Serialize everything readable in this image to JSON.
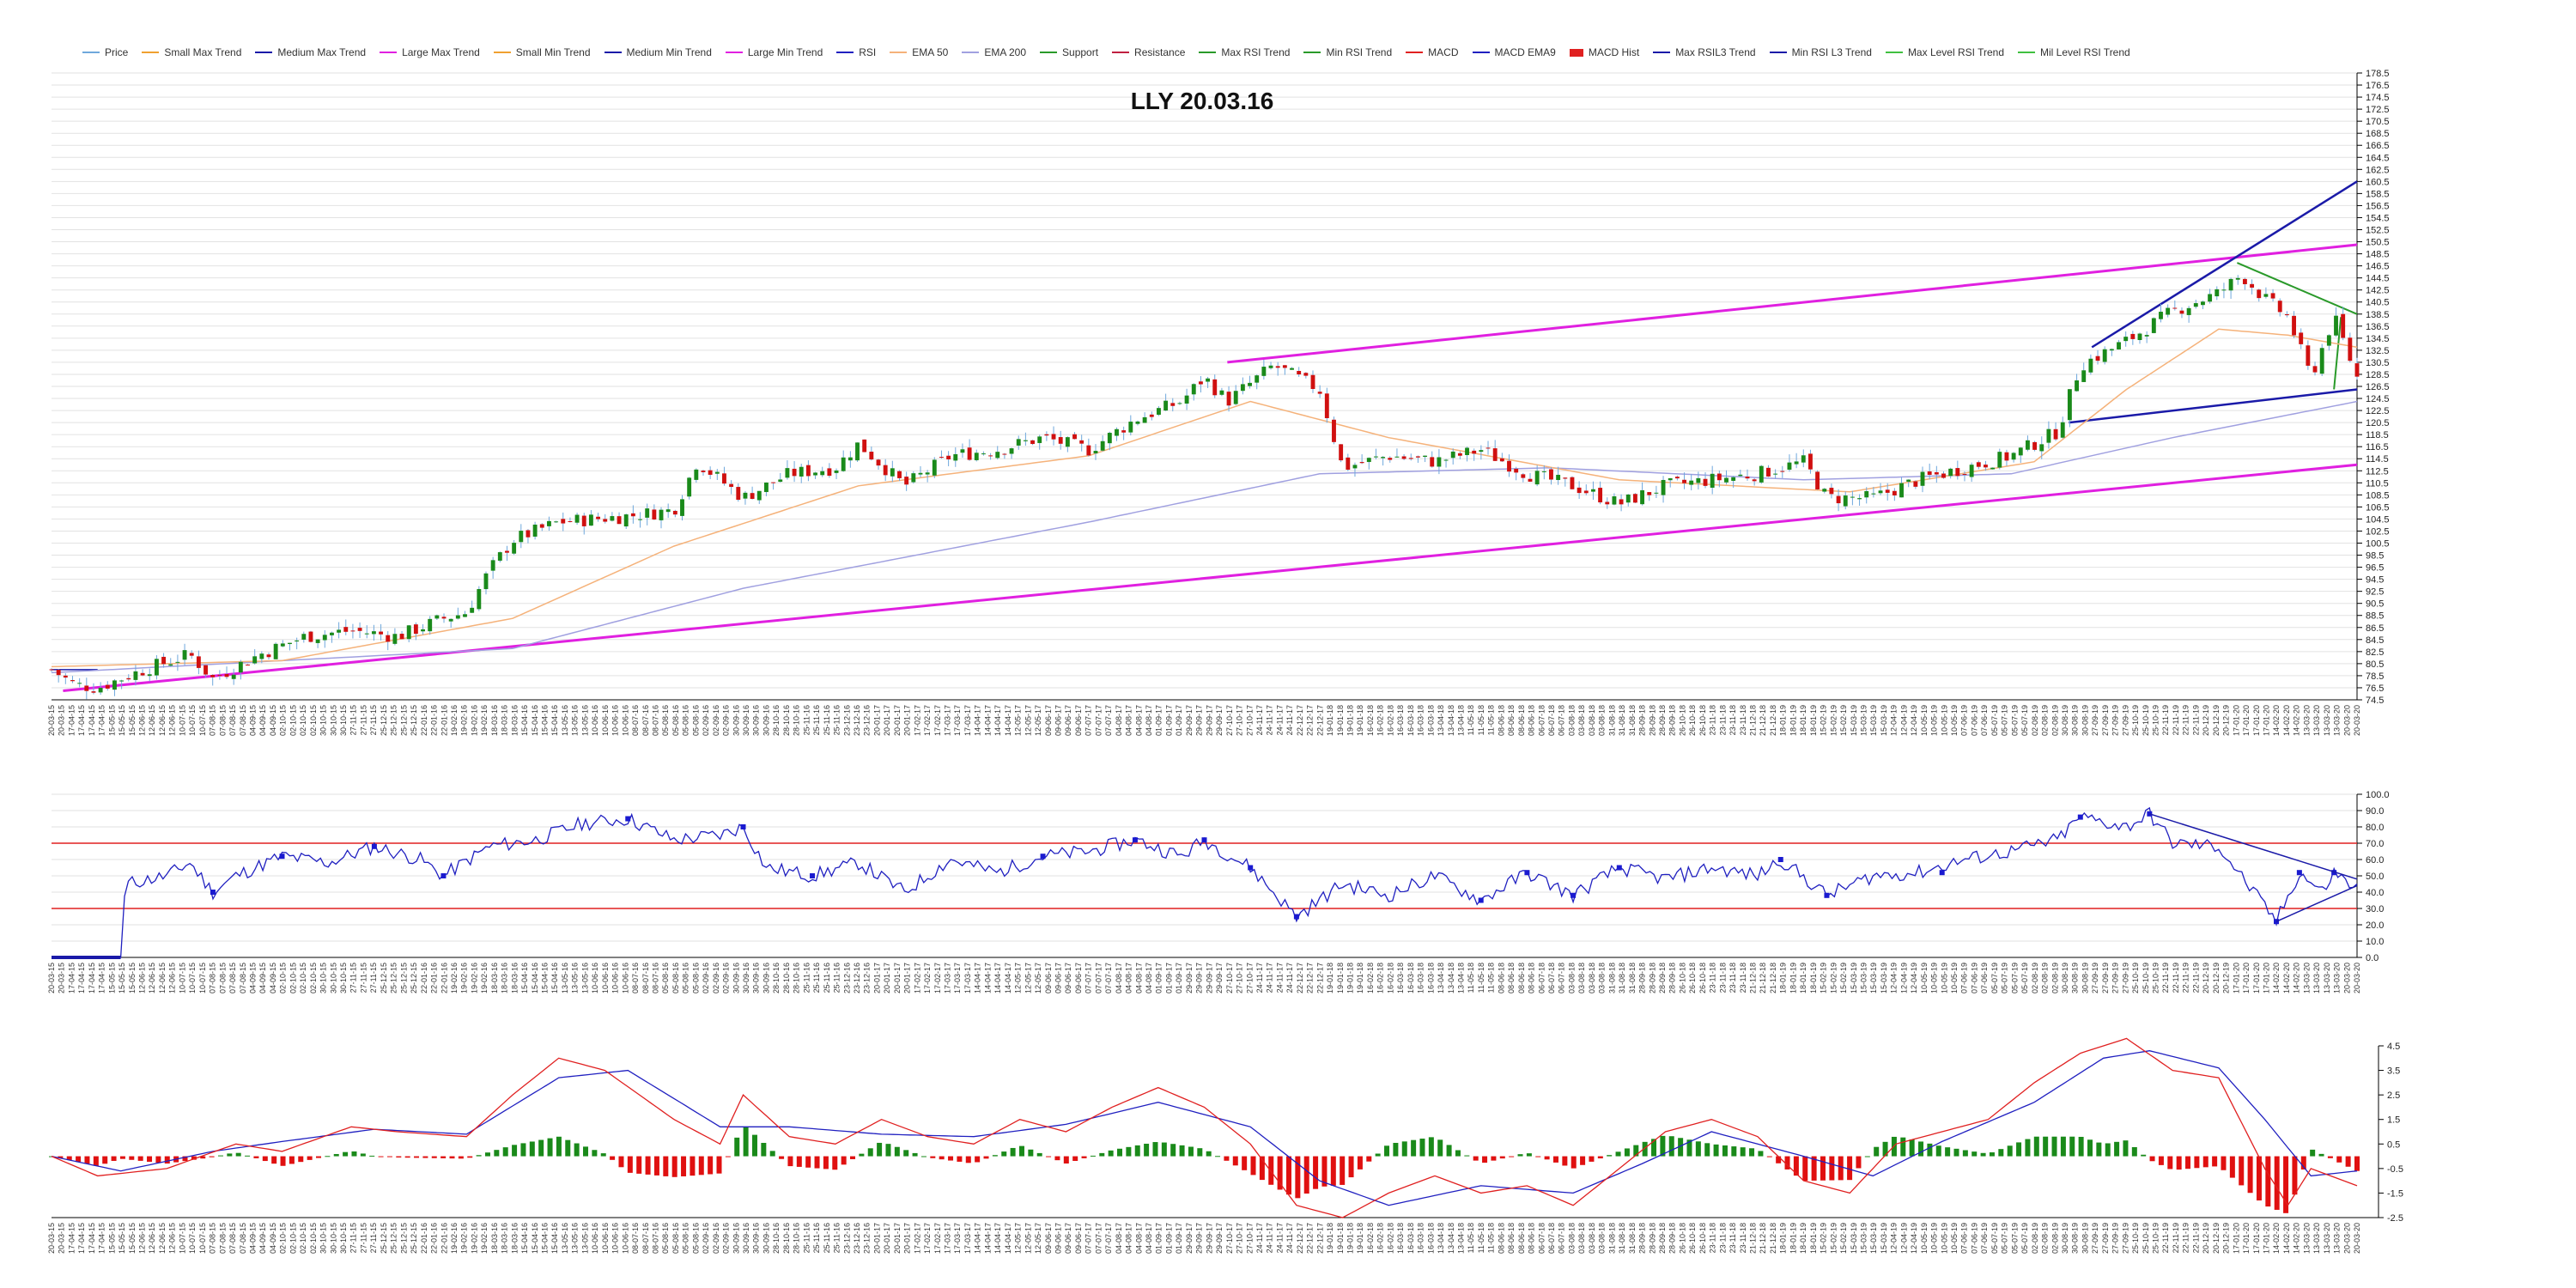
{
  "legend": [
    {
      "label": "Price",
      "color": "#6fa8dc"
    },
    {
      "label": "Small Max Trend",
      "color": "#f0a030"
    },
    {
      "label": "Medium Max Trend",
      "color": "#1a1aa8"
    },
    {
      "label": "Large Max Trend",
      "color": "#e020e0"
    },
    {
      "label": "Small Min Trend",
      "color": "#f0a030"
    },
    {
      "label": "Medium Min Trend",
      "color": "#1a1aa8"
    },
    {
      "label": "Large Min Trend",
      "color": "#e020e0"
    },
    {
      "label": "RSI",
      "color": "#2020c0"
    },
    {
      "label": "EMA 50",
      "color": "#f5b27a"
    },
    {
      "label": "EMA 200",
      "color": "#a0a0e0"
    },
    {
      "label": "Support",
      "color": "#2a9a2a"
    },
    {
      "label": "Resistance",
      "color": "#c02040"
    },
    {
      "label": "Max RSI Trend",
      "color": "#2a9a2a"
    },
    {
      "label": "Min RSI Trend",
      "color": "#2a9a2a"
    },
    {
      "label": "MACD",
      "color": "#e02020"
    },
    {
      "label": "MACD EMA9",
      "color": "#2020c0"
    },
    {
      "label": "MACD Hist",
      "color": "#e02020",
      "box": true
    },
    {
      "label": "Max RSIL3 Trend",
      "color": "#1a1aa8"
    },
    {
      "label": "Min RSI L3 Trend",
      "color": "#1a1aa8"
    },
    {
      "label": "Max Level RSI Trend",
      "color": "#40c040"
    },
    {
      "label": "Mil Level RSI Trend",
      "color": "#40c040"
    }
  ],
  "chart_data": {
    "type": "line",
    "title": "LLY 20.03.16",
    "x_dates": [
      "20-03-15",
      "17-04-15",
      "15-05-15",
      "12-06-15",
      "10-07-15",
      "07-08-15",
      "04-09-15",
      "02-10-15",
      "30-10-15",
      "27-11-15",
      "25-12-15",
      "22-01-16",
      "19-02-16",
      "18-03-16",
      "15-04-16",
      "13-05-16",
      "10-06-16",
      "08-07-16",
      "05-08-16",
      "02-09-16",
      "30-09-16",
      "28-10-16",
      "25-11-16",
      "23-12-16",
      "20-01-17",
      "17-02-17",
      "17-03-17",
      "14-04-17",
      "12-05-17",
      "09-06-17",
      "07-07-17",
      "04-08-17",
      "01-09-17",
      "29-09-17",
      "27-10-17",
      "24-11-17",
      "22-12-17",
      "19-01-18",
      "16-02-18",
      "16-03-18",
      "13-04-18",
      "11-05-18",
      "08-06-18",
      "06-07-18",
      "03-08-18",
      "31-08-18",
      "28-09-18",
      "26-10-18",
      "23-11-18",
      "21-12-18",
      "18-01-19",
      "15-02-19",
      "15-03-19",
      "12-04-19",
      "10-05-19",
      "07-06-19",
      "05-07-19",
      "02-08-19",
      "30-08-19",
      "27-09-19",
      "25-10-19",
      "22-11-19",
      "20-12-19",
      "17-01-20",
      "14-02-20",
      "13-03-20",
      "20-03-20"
    ],
    "price": {
      "ylim": [
        74.5,
        178.5
      ],
      "ticks": [
        74.5,
        76.5,
        78.5,
        80.5,
        82.5,
        84.5,
        86.5,
        88.5,
        90.5,
        92.5,
        94.5,
        96.5,
        98.5,
        100.5,
        102.5,
        104.5,
        106.5,
        108.5,
        110.5,
        112.5,
        114.5,
        116.5,
        118.5,
        120.5,
        122.5,
        124.5,
        126.5,
        128.5,
        130.5,
        132.5,
        134.5,
        136.5,
        138.5,
        140.5,
        142.5,
        144.5,
        146.5,
        148.5,
        150.5,
        152.5,
        154.5,
        156.5,
        158.5,
        160.5,
        162.5,
        164.5,
        166.5,
        168.5,
        170.5,
        172.5,
        174.5,
        176.5,
        178.5
      ],
      "close_anchors": [
        [
          0,
          79.5
        ],
        [
          0.01,
          77
        ],
        [
          0.02,
          76.5
        ],
        [
          0.04,
          79.5
        ],
        [
          0.06,
          82
        ],
        [
          0.07,
          78
        ],
        [
          0.09,
          82
        ],
        [
          0.11,
          85
        ],
        [
          0.13,
          86
        ],
        [
          0.15,
          85
        ],
        [
          0.17,
          88
        ],
        [
          0.18,
          89
        ],
        [
          0.19,
          96
        ],
        [
          0.2,
          101
        ],
        [
          0.22,
          104
        ],
        [
          0.25,
          105
        ],
        [
          0.27,
          106
        ],
        [
          0.28,
          114
        ],
        [
          0.3,
          108
        ],
        [
          0.32,
          112
        ],
        [
          0.34,
          113
        ],
        [
          0.35,
          117
        ],
        [
          0.37,
          110
        ],
        [
          0.39,
          115
        ],
        [
          0.41,
          116
        ],
        [
          0.43,
          118
        ],
        [
          0.45,
          116
        ],
        [
          0.47,
          121
        ],
        [
          0.49,
          124
        ],
        [
          0.5,
          128
        ],
        [
          0.51,
          124
        ],
        [
          0.53,
          130
        ],
        [
          0.55,
          126
        ],
        [
          0.56,
          113
        ],
        [
          0.58,
          115
        ],
        [
          0.6,
          114
        ],
        [
          0.62,
          116
        ],
        [
          0.64,
          112
        ],
        [
          0.66,
          110
        ],
        [
          0.68,
          107
        ],
        [
          0.7,
          110
        ],
        [
          0.72,
          111
        ],
        [
          0.74,
          112
        ],
        [
          0.75,
          113
        ],
        [
          0.76,
          114
        ],
        [
          0.77,
          108
        ],
        [
          0.79,
          108
        ],
        [
          0.81,
          111
        ],
        [
          0.83,
          113
        ],
        [
          0.85,
          115
        ],
        [
          0.87,
          119
        ],
        [
          0.88,
          130
        ],
        [
          0.9,
          134
        ],
        [
          0.92,
          139
        ],
        [
          0.94,
          142
        ],
        [
          0.95,
          145
        ],
        [
          0.96,
          141
        ],
        [
          0.97,
          138
        ],
        [
          0.98,
          128
        ],
        [
          0.99,
          138
        ],
        [
          1,
          128
        ]
      ],
      "ema50_anchors": [
        [
          0,
          80
        ],
        [
          0.1,
          81
        ],
        [
          0.2,
          88
        ],
        [
          0.27,
          100
        ],
        [
          0.35,
          110
        ],
        [
          0.45,
          115
        ],
        [
          0.52,
          124
        ],
        [
          0.58,
          118
        ],
        [
          0.68,
          111
        ],
        [
          0.78,
          109
        ],
        [
          0.86,
          114
        ],
        [
          0.9,
          126
        ],
        [
          0.94,
          136
        ],
        [
          0.97,
          135
        ],
        [
          1,
          133
        ]
      ],
      "ema200_anchors": [
        [
          0,
          79
        ],
        [
          0.2,
          83
        ],
        [
          0.3,
          93
        ],
        [
          0.45,
          104
        ],
        [
          0.55,
          112
        ],
        [
          0.65,
          113
        ],
        [
          0.76,
          111
        ],
        [
          0.85,
          112
        ],
        [
          0.92,
          118
        ],
        [
          1,
          124
        ]
      ]
    },
    "rsi": {
      "ylim": [
        0,
        100
      ],
      "ticks": [
        0,
        10,
        20,
        30,
        40,
        50,
        60,
        70,
        80,
        90,
        100
      ],
      "levels": [
        30,
        70
      ],
      "anchors": [
        [
          0,
          0
        ],
        [
          0.03,
          0
        ],
        [
          0.032,
          45
        ],
        [
          0.05,
          50
        ],
        [
          0.06,
          58
        ],
        [
          0.07,
          40
        ],
        [
          0.08,
          50
        ],
        [
          0.1,
          62
        ],
        [
          0.12,
          58
        ],
        [
          0.14,
          68
        ],
        [
          0.16,
          60
        ],
        [
          0.17,
          50
        ],
        [
          0.19,
          68
        ],
        [
          0.21,
          72
        ],
        [
          0.23,
          82
        ],
        [
          0.25,
          85
        ],
        [
          0.27,
          72
        ],
        [
          0.29,
          75
        ],
        [
          0.3,
          80
        ],
        [
          0.31,
          55
        ],
        [
          0.33,
          50
        ],
        [
          0.35,
          58
        ],
        [
          0.37,
          40
        ],
        [
          0.39,
          60
        ],
        [
          0.41,
          52
        ],
        [
          0.43,
          62
        ],
        [
          0.45,
          65
        ],
        [
          0.47,
          72
        ],
        [
          0.49,
          62
        ],
        [
          0.5,
          72
        ],
        [
          0.52,
          55
        ],
        [
          0.54,
          25
        ],
        [
          0.56,
          45
        ],
        [
          0.58,
          38
        ],
        [
          0.6,
          50
        ],
        [
          0.62,
          35
        ],
        [
          0.64,
          52
        ],
        [
          0.66,
          38
        ],
        [
          0.68,
          55
        ],
        [
          0.7,
          48
        ],
        [
          0.72,
          55
        ],
        [
          0.74,
          50
        ],
        [
          0.75,
          60
        ],
        [
          0.77,
          38
        ],
        [
          0.79,
          50
        ],
        [
          0.81,
          52
        ],
        [
          0.83,
          60
        ],
        [
          0.85,
          65
        ],
        [
          0.87,
          72
        ],
        [
          0.88,
          86
        ],
        [
          0.9,
          80
        ],
        [
          0.91,
          88
        ],
        [
          0.92,
          70
        ],
        [
          0.94,
          68
        ],
        [
          0.955,
          40
        ],
        [
          0.965,
          22
        ],
        [
          0.975,
          52
        ],
        [
          0.985,
          40
        ],
        [
          0.99,
          52
        ],
        [
          1,
          42
        ]
      ]
    },
    "macd": {
      "ylim": [
        -2.5,
        4.5
      ],
      "ticks": [
        -2.5,
        -1.5,
        -0.5,
        0.5,
        1.5,
        2.5,
        3.5,
        4.5
      ],
      "macd_anchors": [
        [
          0,
          0
        ],
        [
          0.02,
          -0.8
        ],
        [
          0.05,
          -0.5
        ],
        [
          0.08,
          0.5
        ],
        [
          0.1,
          0.2
        ],
        [
          0.13,
          1.2
        ],
        [
          0.15,
          1.0
        ],
        [
          0.18,
          0.8
        ],
        [
          0.2,
          2.5
        ],
        [
          0.22,
          4.0
        ],
        [
          0.24,
          3.5
        ],
        [
          0.27,
          1.5
        ],
        [
          0.29,
          0.5
        ],
        [
          0.3,
          2.5
        ],
        [
          0.32,
          0.8
        ],
        [
          0.34,
          0.5
        ],
        [
          0.36,
          1.5
        ],
        [
          0.38,
          0.8
        ],
        [
          0.4,
          0.5
        ],
        [
          0.42,
          1.5
        ],
        [
          0.44,
          1.0
        ],
        [
          0.46,
          2.0
        ],
        [
          0.48,
          2.8
        ],
        [
          0.5,
          2.0
        ],
        [
          0.52,
          0.5
        ],
        [
          0.54,
          -2.0
        ],
        [
          0.56,
          -2.5
        ],
        [
          0.58,
          -1.5
        ],
        [
          0.6,
          -0.8
        ],
        [
          0.62,
          -1.5
        ],
        [
          0.64,
          -1.2
        ],
        [
          0.66,
          -2.0
        ],
        [
          0.68,
          -0.5
        ],
        [
          0.7,
          1.0
        ],
        [
          0.72,
          1.5
        ],
        [
          0.74,
          0.8
        ],
        [
          0.76,
          -1.0
        ],
        [
          0.78,
          -1.5
        ],
        [
          0.8,
          0.5
        ],
        [
          0.82,
          1.0
        ],
        [
          0.84,
          1.5
        ],
        [
          0.86,
          3.0
        ],
        [
          0.88,
          4.2
        ],
        [
          0.9,
          4.8
        ],
        [
          0.92,
          3.5
        ],
        [
          0.94,
          3.2
        ],
        [
          0.96,
          -0.5
        ],
        [
          0.97,
          -2.0
        ],
        [
          0.98,
          -0.5
        ],
        [
          1,
          -1.2
        ]
      ],
      "signal_anchors": [
        [
          0,
          0
        ],
        [
          0.03,
          -0.6
        ],
        [
          0.07,
          0.2
        ],
        [
          0.1,
          0.6
        ],
        [
          0.14,
          1.1
        ],
        [
          0.18,
          0.9
        ],
        [
          0.22,
          3.2
        ],
        [
          0.25,
          3.5
        ],
        [
          0.29,
          1.2
        ],
        [
          0.32,
          1.2
        ],
        [
          0.36,
          0.9
        ],
        [
          0.4,
          0.8
        ],
        [
          0.44,
          1.3
        ],
        [
          0.48,
          2.2
        ],
        [
          0.52,
          1.2
        ],
        [
          0.55,
          -1.0
        ],
        [
          0.58,
          -2.0
        ],
        [
          0.62,
          -1.2
        ],
        [
          0.66,
          -1.5
        ],
        [
          0.69,
          -0.3
        ],
        [
          0.72,
          1.0
        ],
        [
          0.76,
          0.0
        ],
        [
          0.79,
          -0.8
        ],
        [
          0.82,
          0.6
        ],
        [
          0.86,
          2.2
        ],
        [
          0.89,
          4.0
        ],
        [
          0.91,
          4.3
        ],
        [
          0.94,
          3.6
        ],
        [
          0.96,
          1.5
        ],
        [
          0.98,
          -0.8
        ],
        [
          1,
          -0.6
        ]
      ]
    }
  }
}
